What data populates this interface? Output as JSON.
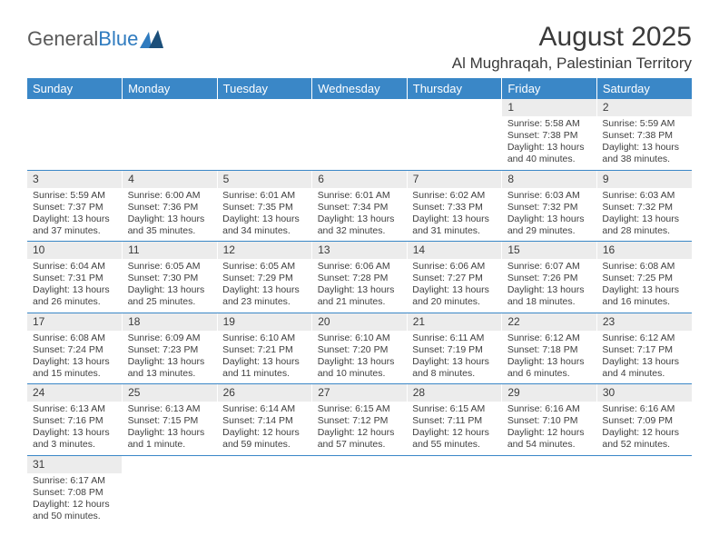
{
  "brand": {
    "part1": "General",
    "part2": "Blue"
  },
  "title": "August 2025",
  "location": "Al Mughraqah, Palestinian Territory",
  "colors": {
    "header_bg": "#3a87c7",
    "header_text": "#ffffff",
    "daynum_bg": "#ececec",
    "border": "#3a87c7",
    "text": "#3a3a3a"
  },
  "weekdays": [
    "Sunday",
    "Monday",
    "Tuesday",
    "Wednesday",
    "Thursday",
    "Friday",
    "Saturday"
  ],
  "weeks": [
    [
      null,
      null,
      null,
      null,
      null,
      {
        "n": "1",
        "sr": "Sunrise: 5:58 AM",
        "ss": "Sunset: 7:38 PM",
        "dl": "Daylight: 13 hours and 40 minutes."
      },
      {
        "n": "2",
        "sr": "Sunrise: 5:59 AM",
        "ss": "Sunset: 7:38 PM",
        "dl": "Daylight: 13 hours and 38 minutes."
      }
    ],
    [
      {
        "n": "3",
        "sr": "Sunrise: 5:59 AM",
        "ss": "Sunset: 7:37 PM",
        "dl": "Daylight: 13 hours and 37 minutes."
      },
      {
        "n": "4",
        "sr": "Sunrise: 6:00 AM",
        "ss": "Sunset: 7:36 PM",
        "dl": "Daylight: 13 hours and 35 minutes."
      },
      {
        "n": "5",
        "sr": "Sunrise: 6:01 AM",
        "ss": "Sunset: 7:35 PM",
        "dl": "Daylight: 13 hours and 34 minutes."
      },
      {
        "n": "6",
        "sr": "Sunrise: 6:01 AM",
        "ss": "Sunset: 7:34 PM",
        "dl": "Daylight: 13 hours and 32 minutes."
      },
      {
        "n": "7",
        "sr": "Sunrise: 6:02 AM",
        "ss": "Sunset: 7:33 PM",
        "dl": "Daylight: 13 hours and 31 minutes."
      },
      {
        "n": "8",
        "sr": "Sunrise: 6:03 AM",
        "ss": "Sunset: 7:32 PM",
        "dl": "Daylight: 13 hours and 29 minutes."
      },
      {
        "n": "9",
        "sr": "Sunrise: 6:03 AM",
        "ss": "Sunset: 7:32 PM",
        "dl": "Daylight: 13 hours and 28 minutes."
      }
    ],
    [
      {
        "n": "10",
        "sr": "Sunrise: 6:04 AM",
        "ss": "Sunset: 7:31 PM",
        "dl": "Daylight: 13 hours and 26 minutes."
      },
      {
        "n": "11",
        "sr": "Sunrise: 6:05 AM",
        "ss": "Sunset: 7:30 PM",
        "dl": "Daylight: 13 hours and 25 minutes."
      },
      {
        "n": "12",
        "sr": "Sunrise: 6:05 AM",
        "ss": "Sunset: 7:29 PM",
        "dl": "Daylight: 13 hours and 23 minutes."
      },
      {
        "n": "13",
        "sr": "Sunrise: 6:06 AM",
        "ss": "Sunset: 7:28 PM",
        "dl": "Daylight: 13 hours and 21 minutes."
      },
      {
        "n": "14",
        "sr": "Sunrise: 6:06 AM",
        "ss": "Sunset: 7:27 PM",
        "dl": "Daylight: 13 hours and 20 minutes."
      },
      {
        "n": "15",
        "sr": "Sunrise: 6:07 AM",
        "ss": "Sunset: 7:26 PM",
        "dl": "Daylight: 13 hours and 18 minutes."
      },
      {
        "n": "16",
        "sr": "Sunrise: 6:08 AM",
        "ss": "Sunset: 7:25 PM",
        "dl": "Daylight: 13 hours and 16 minutes."
      }
    ],
    [
      {
        "n": "17",
        "sr": "Sunrise: 6:08 AM",
        "ss": "Sunset: 7:24 PM",
        "dl": "Daylight: 13 hours and 15 minutes."
      },
      {
        "n": "18",
        "sr": "Sunrise: 6:09 AM",
        "ss": "Sunset: 7:23 PM",
        "dl": "Daylight: 13 hours and 13 minutes."
      },
      {
        "n": "19",
        "sr": "Sunrise: 6:10 AM",
        "ss": "Sunset: 7:21 PM",
        "dl": "Daylight: 13 hours and 11 minutes."
      },
      {
        "n": "20",
        "sr": "Sunrise: 6:10 AM",
        "ss": "Sunset: 7:20 PM",
        "dl": "Daylight: 13 hours and 10 minutes."
      },
      {
        "n": "21",
        "sr": "Sunrise: 6:11 AM",
        "ss": "Sunset: 7:19 PM",
        "dl": "Daylight: 13 hours and 8 minutes."
      },
      {
        "n": "22",
        "sr": "Sunrise: 6:12 AM",
        "ss": "Sunset: 7:18 PM",
        "dl": "Daylight: 13 hours and 6 minutes."
      },
      {
        "n": "23",
        "sr": "Sunrise: 6:12 AM",
        "ss": "Sunset: 7:17 PM",
        "dl": "Daylight: 13 hours and 4 minutes."
      }
    ],
    [
      {
        "n": "24",
        "sr": "Sunrise: 6:13 AM",
        "ss": "Sunset: 7:16 PM",
        "dl": "Daylight: 13 hours and 3 minutes."
      },
      {
        "n": "25",
        "sr": "Sunrise: 6:13 AM",
        "ss": "Sunset: 7:15 PM",
        "dl": "Daylight: 13 hours and 1 minute."
      },
      {
        "n": "26",
        "sr": "Sunrise: 6:14 AM",
        "ss": "Sunset: 7:14 PM",
        "dl": "Daylight: 12 hours and 59 minutes."
      },
      {
        "n": "27",
        "sr": "Sunrise: 6:15 AM",
        "ss": "Sunset: 7:12 PM",
        "dl": "Daylight: 12 hours and 57 minutes."
      },
      {
        "n": "28",
        "sr": "Sunrise: 6:15 AM",
        "ss": "Sunset: 7:11 PM",
        "dl": "Daylight: 12 hours and 55 minutes."
      },
      {
        "n": "29",
        "sr": "Sunrise: 6:16 AM",
        "ss": "Sunset: 7:10 PM",
        "dl": "Daylight: 12 hours and 54 minutes."
      },
      {
        "n": "30",
        "sr": "Sunrise: 6:16 AM",
        "ss": "Sunset: 7:09 PM",
        "dl": "Daylight: 12 hours and 52 minutes."
      }
    ],
    [
      {
        "n": "31",
        "sr": "Sunrise: 6:17 AM",
        "ss": "Sunset: 7:08 PM",
        "dl": "Daylight: 12 hours and 50 minutes."
      },
      null,
      null,
      null,
      null,
      null,
      null
    ]
  ]
}
